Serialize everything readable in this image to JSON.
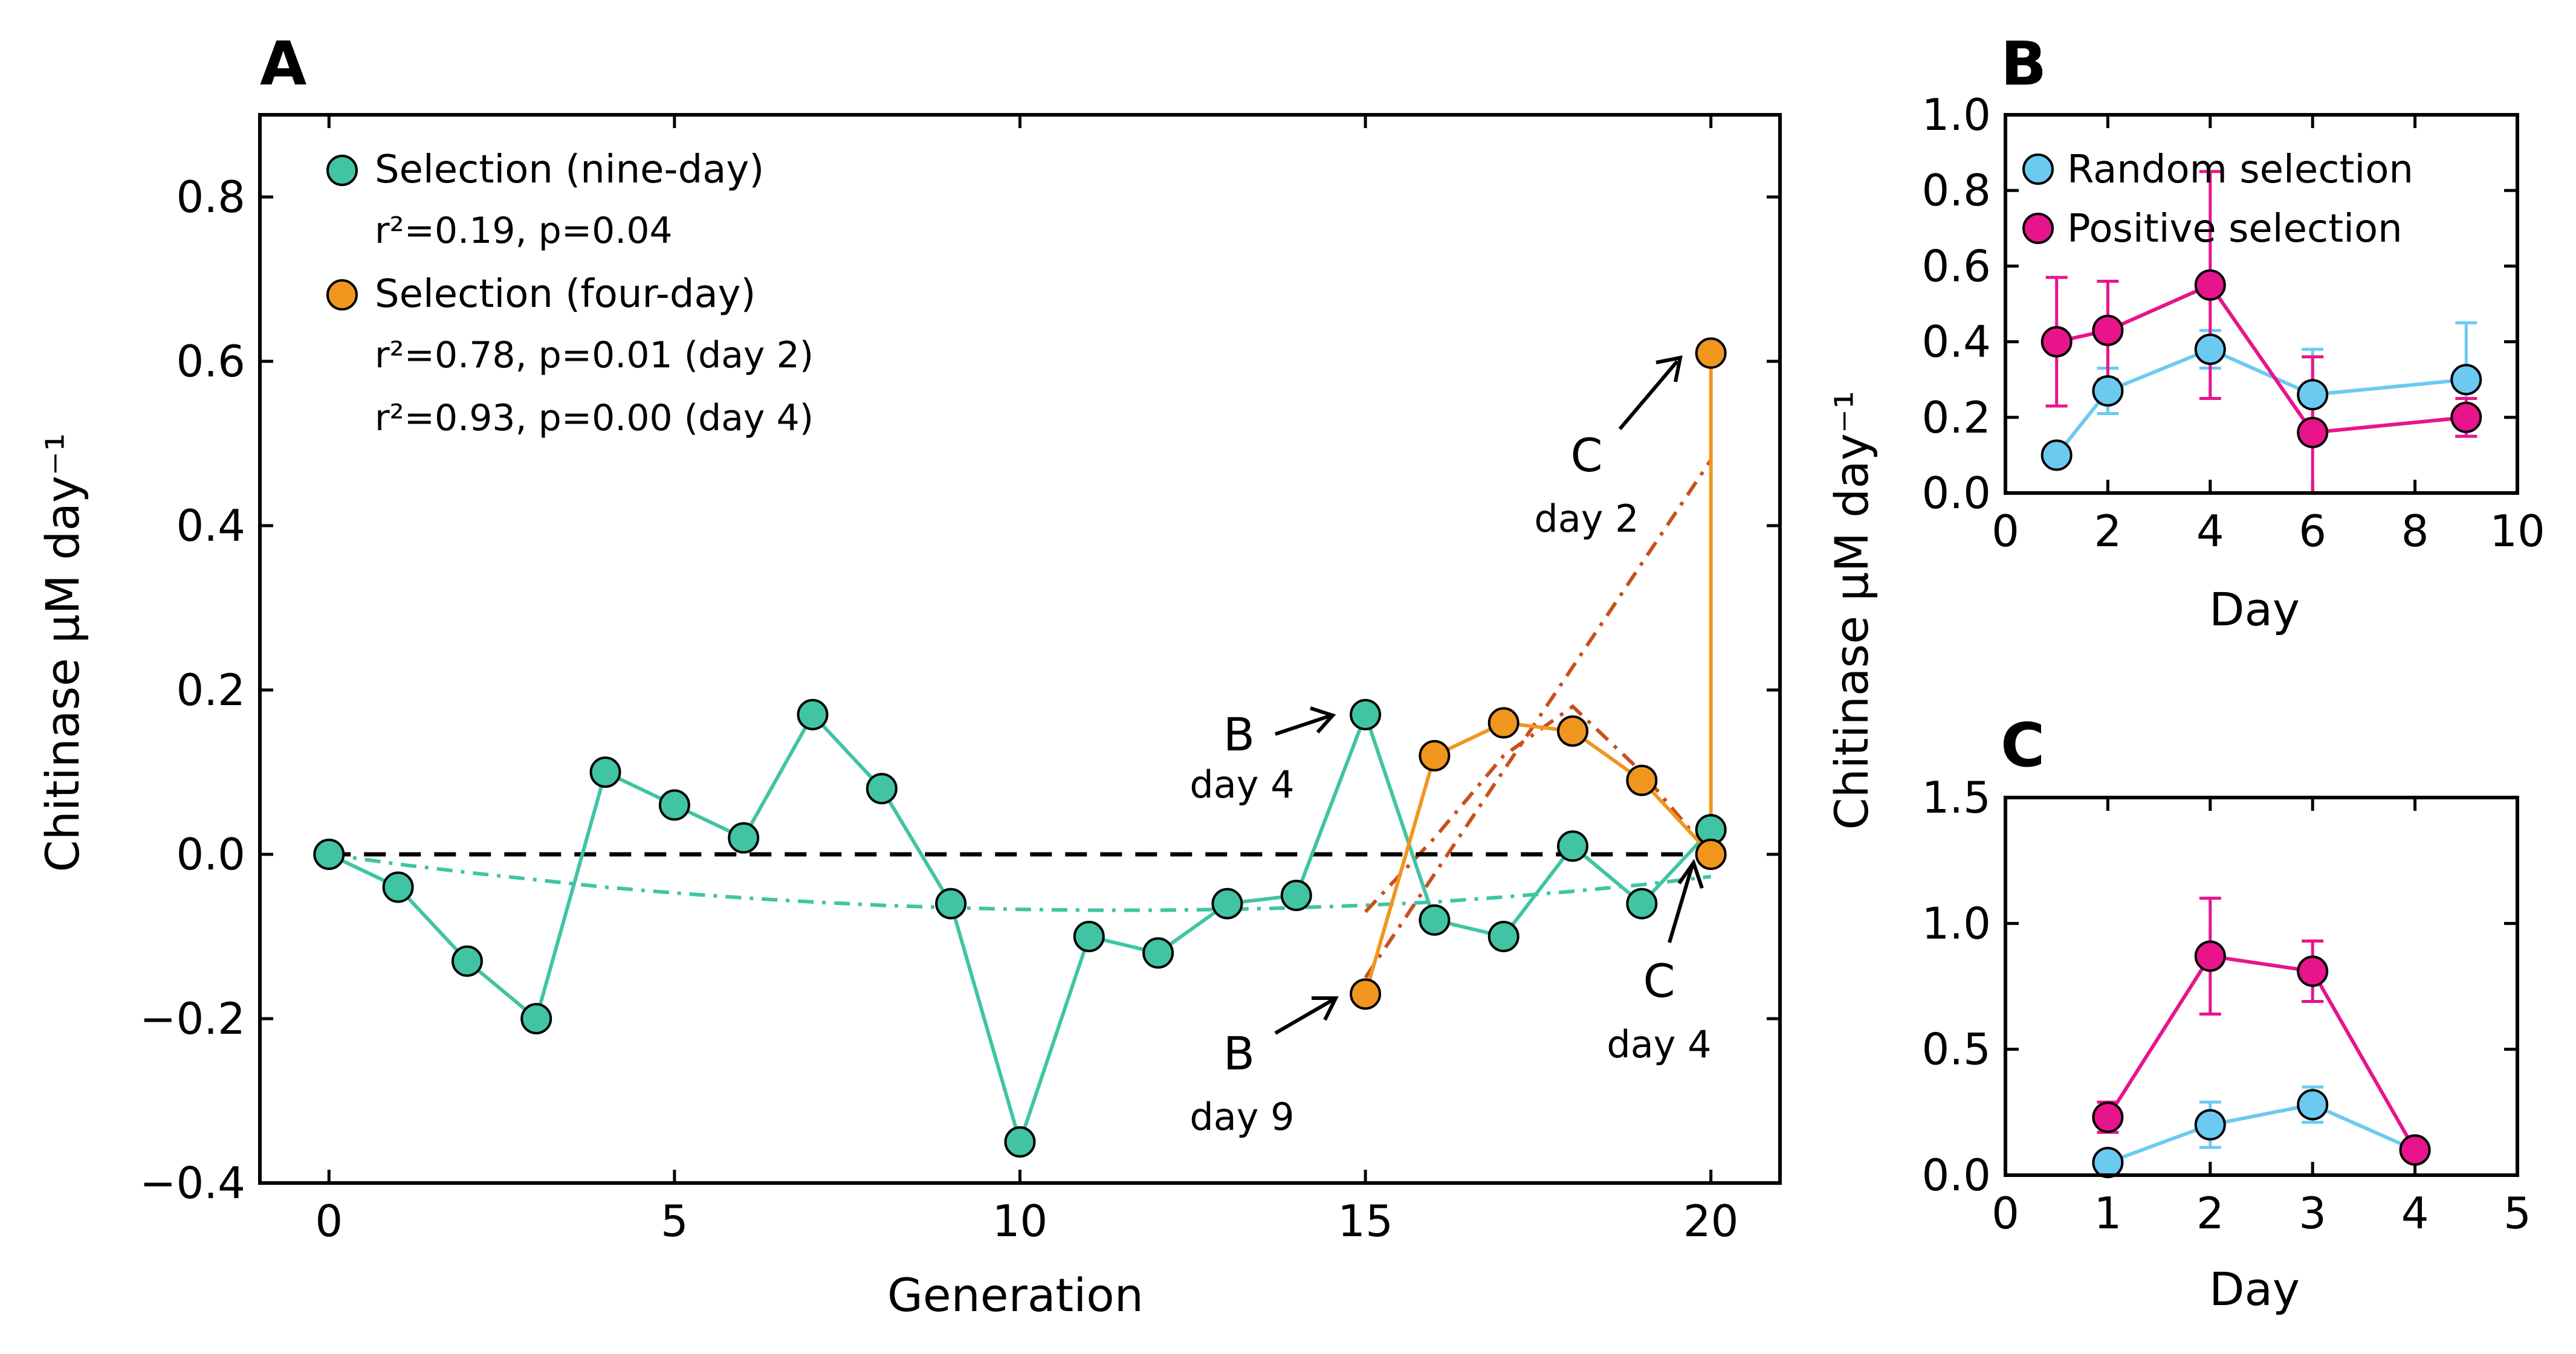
{
  "colors": {
    "nine_day": "#40c4a4",
    "four_day": "#f0961e",
    "fit_four_day": "#c8501e",
    "random": "#6ccaf0",
    "positive": "#e8148c",
    "baseline": "#000000"
  },
  "chart_data": [
    {
      "type": "line",
      "panel_letter": "A",
      "xlabel": "Generation",
      "ylabel": "Chitinase μM day⁻¹",
      "xlim": [
        -1,
        21
      ],
      "ylim": [
        -0.4,
        0.9
      ],
      "xticks": [
        0,
        5,
        10,
        15,
        20
      ],
      "xtick_labels": [
        "0",
        "5",
        "10",
        "15",
        "20"
      ],
      "yticks": [
        -0.4,
        -0.2,
        0.0,
        0.2,
        0.4,
        0.6,
        0.8
      ],
      "ytick_labels": [
        "−0.4",
        "−0.2",
        "0.0",
        "0.2",
        "0.4",
        "0.6",
        "0.8"
      ],
      "baseline_y": 0,
      "series": [
        {
          "name": "Selection (nine-day)",
          "x": [
            0,
            1,
            2,
            3,
            4,
            5,
            6,
            7,
            8,
            9,
            10,
            11,
            12,
            13,
            14,
            15,
            16,
            17,
            18,
            19,
            20
          ],
          "y": [
            0.0,
            -0.04,
            -0.13,
            -0.2,
            0.1,
            0.06,
            0.02,
            0.17,
            0.08,
            -0.06,
            -0.35,
            -0.1,
            -0.12,
            -0.06,
            -0.05,
            0.17,
            -0.08,
            -0.1,
            0.01,
            -0.06,
            0.03
          ]
        },
        {
          "name": "Selection (four-day)",
          "x": [
            15,
            16,
            17,
            18,
            19,
            20,
            20
          ],
          "y": [
            -0.17,
            0.12,
            0.16,
            0.15,
            0.09,
            0.0,
            0.61
          ]
        }
      ],
      "fits": [
        {
          "x": [
            0,
            1,
            2,
            3,
            4,
            5,
            6,
            7,
            8,
            9,
            10,
            11,
            12,
            13,
            14,
            15,
            16,
            17,
            18,
            19,
            20
          ],
          "y": [
            0.0,
            -0.012,
            -0.022,
            -0.031,
            -0.04,
            -0.047,
            -0.053,
            -0.058,
            -0.062,
            -0.065,
            -0.067,
            -0.068,
            -0.068,
            -0.067,
            -0.065,
            -0.062,
            -0.058,
            -0.052,
            -0.045,
            -0.037,
            -0.027
          ]
        },
        {
          "x": [
            15,
            16,
            17,
            18,
            19,
            20
          ],
          "y": [
            -0.07,
            0.02,
            0.12,
            0.18,
            0.1,
            0.0
          ]
        },
        {
          "x": [
            15,
            20
          ],
          "y": [
            -0.15,
            0.48
          ]
        }
      ],
      "legend": [
        {
          "label": "Selection (nine-day)",
          "stats": [
            "r²=0.19, p=0.04"
          ]
        },
        {
          "label": "Selection (four-day)",
          "stats": [
            "r²=0.78, p=0.01 (day 2)",
            "r²=0.93, p=0.00 (day 4)"
          ]
        }
      ],
      "annotations": [
        {
          "letter": "C",
          "sub": "day 2"
        },
        {
          "letter": "B",
          "sub": "day 4"
        },
        {
          "letter": "B",
          "sub": "day 9"
        },
        {
          "letter": "C",
          "sub": "day 4"
        }
      ]
    },
    {
      "type": "line",
      "panel_letter": "B",
      "xlabel": "Day",
      "ylabel": "Chitinase μM day⁻¹",
      "xlim": [
        0,
        10
      ],
      "ylim": [
        0,
        1.0
      ],
      "xticks": [
        0,
        2,
        4,
        6,
        8,
        10
      ],
      "xtick_labels": [
        "0",
        "2",
        "4",
        "6",
        "8",
        "10"
      ],
      "yticks": [
        0.0,
        0.2,
        0.4,
        0.6,
        0.8,
        1.0
      ],
      "ytick_labels": [
        "0.0",
        "0.2",
        "0.4",
        "0.6",
        "0.8",
        "1.0"
      ],
      "series": [
        {
          "name": "Random selection",
          "x": [
            1,
            2,
            4,
            6,
            9
          ],
          "y": [
            0.1,
            0.27,
            0.38,
            0.26,
            0.3
          ],
          "err": [
            0.0,
            0.06,
            0.05,
            0.12,
            0.15
          ]
        },
        {
          "name": "Positive selection",
          "x": [
            1,
            2,
            4,
            6,
            9
          ],
          "y": [
            0.4,
            0.43,
            0.55,
            0.16,
            0.2
          ],
          "err": [
            0.17,
            0.13,
            0.3,
            0.2,
            0.05
          ]
        }
      ]
    },
    {
      "type": "line",
      "panel_letter": "C",
      "xlabel": "Day",
      "ylabel": "Chitinase μM day⁻¹",
      "xlim": [
        0,
        5
      ],
      "ylim": [
        0,
        1.5
      ],
      "xticks": [
        0,
        1,
        2,
        3,
        4,
        5
      ],
      "xtick_labels": [
        "0",
        "1",
        "2",
        "3",
        "4",
        "5"
      ],
      "yticks": [
        0.0,
        0.5,
        1.0,
        1.5
      ],
      "ytick_labels": [
        "0.0",
        "0.5",
        "1.0",
        "1.5"
      ],
      "series": [
        {
          "name": "Random selection",
          "x": [
            1,
            2,
            3,
            4
          ],
          "y": [
            0.05,
            0.2,
            0.28,
            0.1
          ],
          "err": [
            0.0,
            0.09,
            0.07,
            0.0
          ]
        },
        {
          "name": "Positive selection",
          "x": [
            1,
            2,
            3,
            4
          ],
          "y": [
            0.23,
            0.87,
            0.81,
            0.1
          ],
          "err": [
            0.06,
            0.23,
            0.12,
            0.0
          ]
        }
      ]
    }
  ]
}
